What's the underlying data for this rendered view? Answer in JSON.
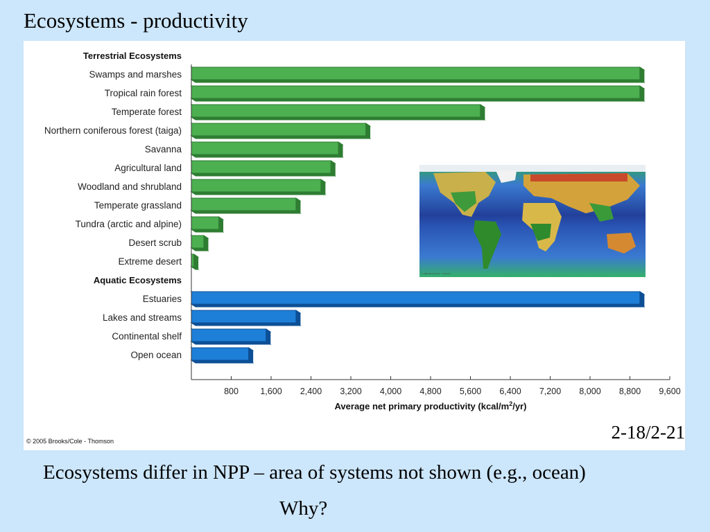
{
  "slide": {
    "title": "Ecosystems - productivity",
    "figure_ref": "2-18/2-21",
    "caption_line1": "Ecosystems differ in NPP – area of systems not shown (e.g., ocean)",
    "caption_line2": "Why?",
    "copyright": "© 2005 Brooks/Cole - Thomson",
    "map_credit": "© 2005 Brooks/Cole · Thomson"
  },
  "colors": {
    "background": "#cce6fb",
    "terrestrial_bar": "#4caf50",
    "terrestrial_dark": "#2e7d32",
    "aquatic_bar": "#1e7fd8",
    "aquatic_dark": "#0d4f95"
  },
  "chart_data": {
    "type": "bar",
    "orientation": "horizontal",
    "xlabel_main": "Average net primary productivity (kcal/m",
    "xlabel_sup": "2",
    "xlabel_end": "/yr)",
    "xlim": [
      0,
      9600
    ],
    "xticks": [
      800,
      1600,
      2400,
      3200,
      4000,
      4800,
      5600,
      6400,
      7200,
      8000,
      8800,
      9600
    ],
    "xtick_labels": [
      "800",
      "1,600",
      "2,400",
      "3,200",
      "4,000",
      "4,800",
      "5,600",
      "6,400",
      "7,200",
      "8,000",
      "8,800",
      "9,600"
    ],
    "groups": [
      {
        "name": "Terrestrial Ecosystems",
        "color_key": "terrestrial",
        "categories": [
          "Swamps and marshes",
          "Tropical rain forest",
          "Temperate forest",
          "Northern coniferous forest (taiga)",
          "Savanna",
          "Agricultural land",
          "Woodland and shrubland",
          "Temperate grassland",
          "Tundra (arctic and alpine)",
          "Desert scrub",
          "Extreme desert"
        ],
        "values": [
          9000,
          9000,
          5800,
          3500,
          2950,
          2800,
          2600,
          2100,
          550,
          250,
          50
        ]
      },
      {
        "name": "Aquatic Ecosystems",
        "color_key": "aquatic",
        "categories": [
          "Estuaries",
          "Lakes and streams",
          "Continental shelf",
          "Open ocean"
        ],
        "values": [
          9000,
          2100,
          1500,
          1150
        ]
      }
    ]
  }
}
